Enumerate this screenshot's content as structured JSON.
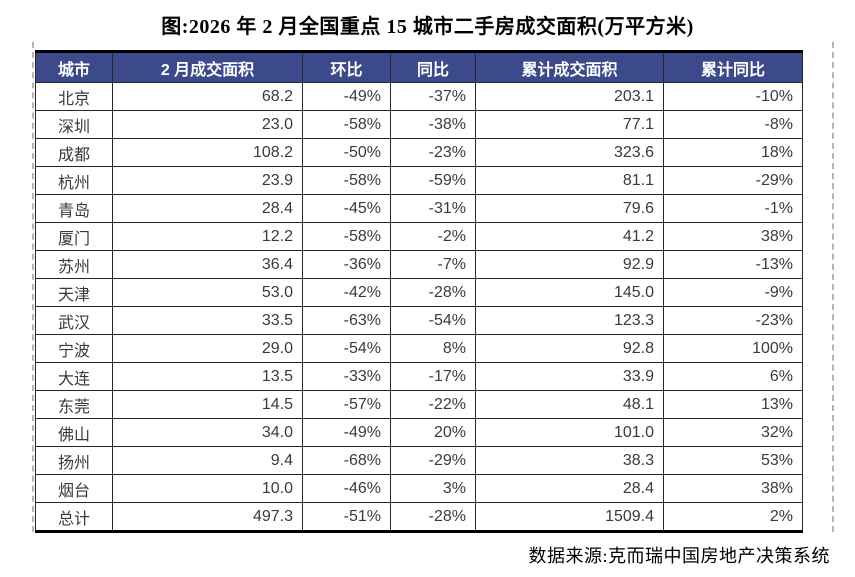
{
  "title": "图:2026 年 2 月全国重点 15 城市二手房成交面积(万平方米)",
  "source_note": "数据来源:克而瑞中国房地产决策系统",
  "colors": {
    "header_bg": "#3C4A8B",
    "header_text": "#FFFFFF",
    "cell_text": "#3A3A3A",
    "border": "#262626",
    "page_break_dash": "#B5B5B5"
  },
  "table": {
    "columns": [
      "城市",
      "2 月成交面积",
      "环比",
      "同比",
      "累计成交面积",
      "累计同比"
    ],
    "rows": [
      [
        "北京",
        "68.2",
        "-49%",
        "-37%",
        "203.1",
        "-10%"
      ],
      [
        "深圳",
        "23.0",
        "-58%",
        "-38%",
        "77.1",
        "-8%"
      ],
      [
        "成都",
        "108.2",
        "-50%",
        "-23%",
        "323.6",
        "18%"
      ],
      [
        "杭州",
        "23.9",
        "-58%",
        "-59%",
        "81.1",
        "-29%"
      ],
      [
        "青岛",
        "28.4",
        "-45%",
        "-31%",
        "79.6",
        "-1%"
      ],
      [
        "厦门",
        "12.2",
        "-58%",
        "-2%",
        "41.2",
        "38%"
      ],
      [
        "苏州",
        "36.4",
        "-36%",
        "-7%",
        "92.9",
        "-13%"
      ],
      [
        "天津",
        "53.0",
        "-42%",
        "-28%",
        "145.0",
        "-9%"
      ],
      [
        "武汉",
        "33.5",
        "-63%",
        "-54%",
        "123.3",
        "-23%"
      ],
      [
        "宁波",
        "29.0",
        "-54%",
        "8%",
        "92.8",
        "100%"
      ],
      [
        "大连",
        "13.5",
        "-33%",
        "-17%",
        "33.9",
        "6%"
      ],
      [
        "东莞",
        "14.5",
        "-57%",
        "-22%",
        "48.1",
        "13%"
      ],
      [
        "佛山",
        "34.0",
        "-49%",
        "20%",
        "101.0",
        "32%"
      ],
      [
        "扬州",
        "9.4",
        "-68%",
        "-29%",
        "38.3",
        "53%"
      ],
      [
        "烟台",
        "10.0",
        "-46%",
        "3%",
        "28.4",
        "38%"
      ],
      [
        "总计",
        "497.3",
        "-51%",
        "-28%",
        "1509.4",
        "2%"
      ]
    ]
  },
  "chart_data": {
    "type": "table",
    "title": "图:2026 年 2 月全国重点 15 城市二手房成交面积(万平方米)",
    "columns": [
      "城市",
      "2 月成交面积",
      "环比",
      "同比",
      "累计成交面积",
      "累计同比"
    ],
    "rows": [
      [
        "北京",
        68.2,
        "-49%",
        "-37%",
        203.1,
        "-10%"
      ],
      [
        "深圳",
        23.0,
        "-58%",
        "-38%",
        77.1,
        "-8%"
      ],
      [
        "成都",
        108.2,
        "-50%",
        "-23%",
        323.6,
        "18%"
      ],
      [
        "杭州",
        23.9,
        "-58%",
        "-59%",
        81.1,
        "-29%"
      ],
      [
        "青岛",
        28.4,
        "-45%",
        "-31%",
        79.6,
        "-1%"
      ],
      [
        "厦门",
        12.2,
        "-58%",
        "-2%",
        41.2,
        "38%"
      ],
      [
        "苏州",
        36.4,
        "-36%",
        "-7%",
        92.9,
        "-13%"
      ],
      [
        "天津",
        53.0,
        "-42%",
        "-28%",
        145.0,
        "-9%"
      ],
      [
        "武汉",
        33.5,
        "-63%",
        "-54%",
        123.3,
        "-23%"
      ],
      [
        "宁波",
        29.0,
        "-54%",
        "8%",
        92.8,
        "100%"
      ],
      [
        "大连",
        13.5,
        "-33%",
        "-17%",
        33.9,
        "6%"
      ],
      [
        "东莞",
        14.5,
        "-57%",
        "-22%",
        48.1,
        "13%"
      ],
      [
        "佛山",
        34.0,
        "-49%",
        "20%",
        101.0,
        "32%"
      ],
      [
        "扬州",
        9.4,
        "-68%",
        "-29%",
        38.3,
        "53%"
      ],
      [
        "烟台",
        10.0,
        "-46%",
        "3%",
        28.4,
        "38%"
      ],
      [
        "总计",
        497.3,
        "-51%",
        "-28%",
        1509.4,
        "2%"
      ]
    ],
    "footnote": "数据来源:克而瑞中国房地产决策系统"
  }
}
